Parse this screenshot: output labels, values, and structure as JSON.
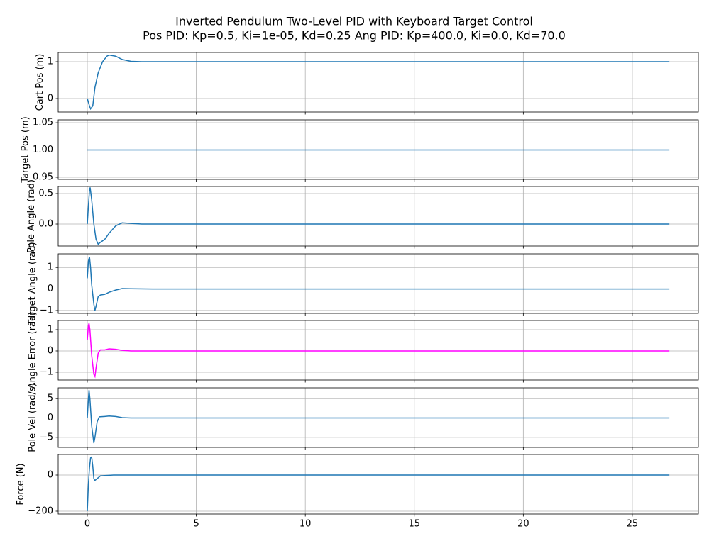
{
  "title": "Inverted Pendulum Two-Level PID with Keyboard Target Control",
  "subtitle": "Pos PID: Kp=0.5, Ki=1e-05, Kd=0.25    Ang PID: Kp=400.0, Ki=0.0, Kd=70.0",
  "x_axis": {
    "xlim": [
      -1.335,
      28.03
    ],
    "xticks": [
      0,
      5,
      10,
      15,
      20,
      25
    ],
    "grid": true
  },
  "chart_data": [
    {
      "type": "line",
      "ylabel": "Cart Pos (m)",
      "ylim": [
        -0.365,
        1.25
      ],
      "yticks": [
        0,
        1
      ],
      "grid": true,
      "series": [
        {
          "color": "#1f77b4",
          "x": [
            0,
            0.1,
            0.15,
            0.25,
            0.35,
            0.5,
            0.7,
            0.9,
            1.0,
            1.3,
            1.6,
            2.0,
            2.5,
            26.7
          ],
          "values": [
            0,
            -0.2,
            -0.28,
            -0.2,
            0.3,
            0.7,
            1.0,
            1.15,
            1.18,
            1.15,
            1.06,
            1.01,
            1.0,
            1.0
          ]
        }
      ]
    },
    {
      "type": "line",
      "ylabel": "Target Pos (m)",
      "ylim": [
        0.9461,
        1.0553
      ],
      "yticks": [
        {
          "value": 0.95,
          "label": "0.95"
        },
        {
          "value": 1.0,
          "label": "1.00"
        },
        {
          "value": 1.05,
          "label": "1.05"
        }
      ],
      "grid": true,
      "series": [
        {
          "color": "#1f77b4",
          "x": [
            0,
            26.7
          ],
          "values": [
            1,
            1
          ]
        }
      ]
    },
    {
      "type": "line",
      "ylabel": "Pole Angle (rad)",
      "ylim": [
        -0.36,
        0.616
      ],
      "yticks": [
        {
          "value": 0,
          "label": "0.0"
        },
        0.5
      ],
      "grid": true,
      "series": [
        {
          "color": "#1f77b4",
          "x": [
            0,
            0.05,
            0.1,
            0.13,
            0.2,
            0.3,
            0.4,
            0.5,
            0.6,
            0.8,
            1.0,
            1.3,
            1.6,
            2.0,
            2.5,
            26.7
          ],
          "values": [
            0,
            0.3,
            0.55,
            0.6,
            0.4,
            0,
            -0.25,
            -0.33,
            -0.3,
            -0.25,
            -0.15,
            -0.03,
            0.02,
            0.01,
            0,
            0
          ]
        }
      ]
    },
    {
      "type": "line",
      "ylabel": "Target Angle (rad)",
      "ylim": [
        -1.133,
        1.633
      ],
      "yticks": [
        {
          "value": -1,
          "label": "−1"
        },
        0,
        1
      ],
      "grid": true,
      "series": [
        {
          "color": "#1f77b4",
          "x": [
            0,
            0.05,
            0.1,
            0.15,
            0.2,
            0.3,
            0.35,
            0.4,
            0.5,
            0.6,
            0.8,
            1.0,
            1.3,
            1.6,
            2.0,
            3.0,
            26.7
          ],
          "values": [
            0.5,
            1.3,
            1.5,
            1.0,
            0.2,
            -0.7,
            -1.0,
            -0.8,
            -0.35,
            -0.28,
            -0.25,
            -0.15,
            -0.05,
            0.02,
            0.01,
            0,
            0
          ]
        }
      ]
    },
    {
      "type": "line",
      "ylabel": "Angle Error (rad)",
      "ylim": [
        -1.367,
        1.433
      ],
      "yticks": [
        {
          "value": -1,
          "label": "−1"
        },
        0,
        1
      ],
      "grid": true,
      "series": [
        {
          "color": "#ff00ff",
          "x": [
            0,
            0.05,
            0.08,
            0.12,
            0.2,
            0.3,
            0.35,
            0.4,
            0.5,
            0.6,
            0.8,
            1.0,
            1.3,
            1.6,
            2.0,
            26.7
          ],
          "values": [
            0.5,
            1.2,
            1.3,
            1.0,
            -0.2,
            -1.1,
            -1.2,
            -0.8,
            -0.1,
            0.05,
            0.05,
            0.1,
            0.08,
            0.03,
            0,
            0
          ]
        }
      ]
    },
    {
      "type": "line",
      "ylabel": "Pole Vel (rad/s)",
      "ylim": [
        -7.59,
        7.78
      ],
      "yticks": [
        {
          "value": -5,
          "label": "−5"
        },
        0,
        5
      ],
      "grid": true,
      "series": [
        {
          "color": "#1f77b4",
          "x": [
            0,
            0.05,
            0.08,
            0.12,
            0.2,
            0.3,
            0.35,
            0.45,
            0.55,
            0.8,
            1.0,
            1.3,
            1.6,
            2.0,
            26.7
          ],
          "values": [
            0,
            5,
            7.2,
            5,
            -2,
            -6.5,
            -5,
            -1,
            0.3,
            0.4,
            0.5,
            0.4,
            0.1,
            0,
            0
          ]
        }
      ]
    },
    {
      "type": "line",
      "ylabel": "Force (N)",
      "ylim": [
        -215.7,
        113.7
      ],
      "yticks": [
        {
          "value": -200,
          "label": "−200"
        },
        0
      ],
      "grid": true,
      "series": [
        {
          "color": "#1f77b4",
          "x": [
            0,
            0.05,
            0.1,
            0.15,
            0.2,
            0.25,
            0.3,
            0.35,
            0.45,
            0.6,
            0.8,
            1.2,
            2.0,
            26.7
          ],
          "values": [
            -200,
            -50,
            40,
            95,
            100,
            50,
            -20,
            -30,
            -20,
            -5,
            -3,
            0,
            0,
            0
          ]
        }
      ]
    }
  ]
}
